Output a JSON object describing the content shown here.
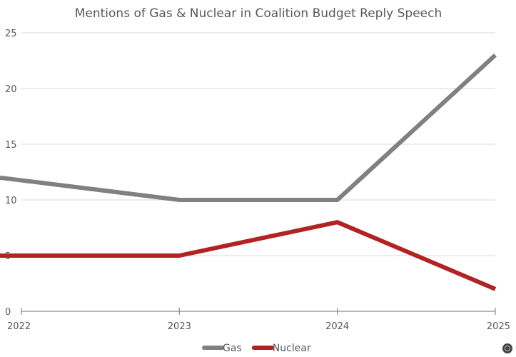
{
  "chart_data": {
    "type": "line",
    "title": "Mentions of Gas & Nuclear in Coalition Budget Reply Speech",
    "categories": [
      "2022",
      "2023",
      "2024",
      "2025"
    ],
    "series": [
      {
        "name": "Gas",
        "values": [
          12,
          10,
          10,
          23
        ],
        "color": "#808080"
      },
      {
        "name": "Nuclear",
        "values": [
          5,
          5,
          8,
          2
        ],
        "color": "#B22222"
      }
    ],
    "ylim": [
      0,
      25
    ],
    "yticks": [
      0,
      5,
      10,
      15,
      20,
      25
    ],
    "grid": true,
    "legend": "bottom",
    "xlabel": "",
    "ylabel": ""
  }
}
